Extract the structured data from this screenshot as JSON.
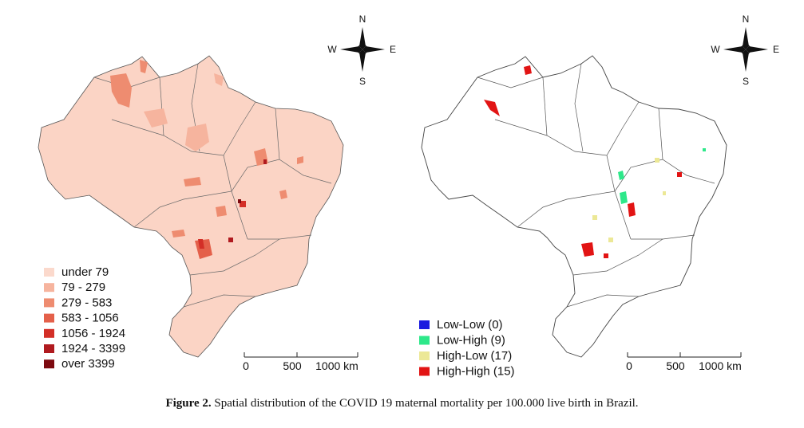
{
  "left_map": {
    "legend": [
      {
        "label": "under 79",
        "color": "#fbd9cc"
      },
      {
        "label": "79 - 279",
        "color": "#f6b49e"
      },
      {
        "label": "279 - 583",
        "color": "#ee8c70"
      },
      {
        "label": "583 - 1056",
        "color": "#e4604a"
      },
      {
        "label": "1056 - 1924",
        "color": "#d32f27"
      },
      {
        "label": "1924 - 3399",
        "color": "#b01a1f"
      },
      {
        "label": "over 3399",
        "color": "#7d0a10"
      }
    ],
    "base_color": "#fbd4c5"
  },
  "right_map": {
    "legend": [
      {
        "label": "Low-Low (0)",
        "color": "#1a1adf"
      },
      {
        "label": "Low-High (9)",
        "color": "#2ee88a"
      },
      {
        "label": "High-Low (17)",
        "color": "#ece896"
      },
      {
        "label": "High-High (15)",
        "color": "#e21414"
      }
    ]
  },
  "compass": {
    "n": "N",
    "s": "S",
    "e": "E",
    "w": "W"
  },
  "scalebar": {
    "t0": "0",
    "t1": "500",
    "t2": "1000 km"
  },
  "caption": {
    "figure": "Figure 2.",
    "text": "Spatial distribution of the COVID 19 maternal mortality per 100.000 live birth in Brazil."
  }
}
